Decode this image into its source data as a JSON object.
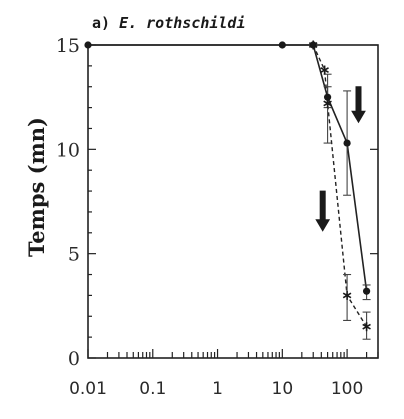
{
  "chart_data": {
    "type": "line",
    "title": "a) E. rothschildi",
    "title_prefix": "a)",
    "title_taxon": "E. rothschildi",
    "xlabel": "",
    "ylabel": "Temps (mn)",
    "x_scale": "log",
    "xlim": [
      0.01,
      300
    ],
    "ylim": [
      0,
      15
    ],
    "x_ticks": [
      0.01,
      0.1,
      1,
      10,
      100
    ],
    "x_tick_labels": [
      "0.01",
      "0.1",
      "1",
      "10",
      "100"
    ],
    "y_ticks": [
      0,
      5,
      10,
      15
    ],
    "y_tick_labels": [
      "0",
      "5",
      "10",
      "15"
    ],
    "grid": false,
    "legend": "none",
    "series": [
      {
        "style": "solid",
        "marker": "circle",
        "points": [
          {
            "x": 0.01,
            "y": 15
          },
          {
            "x": 10,
            "y": 15
          },
          {
            "x": 30,
            "y": 15
          },
          {
            "x": 50,
            "y": 12.5,
            "err_low": 12,
            "err_high": 13
          },
          {
            "x": 100,
            "y": 10.3,
            "err_low": 7.8,
            "err_high": 12.8
          },
          {
            "x": 200,
            "y": 3.2,
            "err_low": 2.8,
            "err_high": 3.5
          }
        ]
      },
      {
        "style": "dashed",
        "marker": "star",
        "points": [
          {
            "x": 30,
            "y": 15
          },
          {
            "x": 45,
            "y": 13.8
          },
          {
            "x": 50,
            "y": 12.2,
            "err_low": 10.3,
            "err_high": 13.6
          },
          {
            "x": 100,
            "y": 3.0,
            "err_low": 1.8,
            "err_high": 4.0
          },
          {
            "x": 200,
            "y": 1.5,
            "err_low": 0.9,
            "err_high": 2.2
          }
        ]
      }
    ],
    "annotations": [
      {
        "type": "arrow",
        "direction": "down",
        "x": 150,
        "y_top": 13,
        "y_bottom": 11.3
      },
      {
        "type": "arrow",
        "direction": "down",
        "x": 42,
        "y_top": 8,
        "y_bottom": 6.1
      }
    ]
  }
}
